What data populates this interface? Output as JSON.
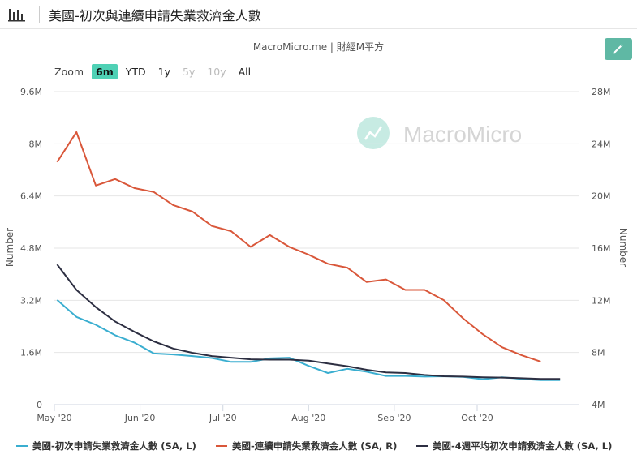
{
  "header": {
    "title": "美國-初次與連續申請失業救濟金人數"
  },
  "source": "MacroMicro.me | 財經M平方",
  "watermark": "MacroMicro",
  "zoom": {
    "label": "Zoom",
    "buttons": [
      {
        "label": "6m",
        "state": "active"
      },
      {
        "label": "YTD",
        "state": "normal"
      },
      {
        "label": "1y",
        "state": "normal"
      },
      {
        "label": "5y",
        "state": "disabled"
      },
      {
        "label": "10y",
        "state": "disabled"
      },
      {
        "label": "All",
        "state": "normal"
      }
    ]
  },
  "chart_data": {
    "type": "line",
    "x_axis": {
      "ticks": [
        {
          "date": "2020-05-01",
          "label": "May '20"
        },
        {
          "date": "2020-06-01",
          "label": "Jun '20"
        },
        {
          "date": "2020-07-01",
          "label": "Jul '20"
        },
        {
          "date": "2020-08-01",
          "label": "Aug '20"
        },
        {
          "date": "2020-09-01",
          "label": "Sep '20"
        },
        {
          "date": "2020-10-01",
          "label": "Oct '20"
        }
      ],
      "range": [
        "2020-05-01",
        "2020-11-07"
      ]
    },
    "y_left": {
      "label": "Number",
      "range": [
        0,
        9600000
      ],
      "ticks": [
        {
          "value": 0,
          "label": "0"
        },
        {
          "value": 1600000,
          "label": "1.6M"
        },
        {
          "value": 3200000,
          "label": "3.2M"
        },
        {
          "value": 4800000,
          "label": "4.8M"
        },
        {
          "value": 6400000,
          "label": "6.4M"
        },
        {
          "value": 8000000,
          "label": "8M"
        },
        {
          "value": 9600000,
          "label": "9.6M"
        }
      ]
    },
    "y_right": {
      "label": "Number",
      "range": [
        4000000,
        28000000
      ],
      "ticks": [
        {
          "value": 4000000,
          "label": "4M"
        },
        {
          "value": 8000000,
          "label": "8M"
        },
        {
          "value": 12000000,
          "label": "12M"
        },
        {
          "value": 16000000,
          "label": "16M"
        },
        {
          "value": 20000000,
          "label": "20M"
        },
        {
          "value": 24000000,
          "label": "24M"
        },
        {
          "value": 28000000,
          "label": "28M"
        }
      ]
    },
    "grid": true,
    "legend_position": "bottom",
    "series": [
      {
        "name": "美國-初次申請失業救濟金人數 (SA, L)",
        "axis": "left",
        "color": "#3aaed0",
        "points": [
          [
            "2020-05-02",
            3210000
          ],
          [
            "2020-05-09",
            2690000
          ],
          [
            "2020-05-16",
            2450000
          ],
          [
            "2020-05-23",
            2130000
          ],
          [
            "2020-05-30",
            1900000
          ],
          [
            "2020-06-06",
            1570000
          ],
          [
            "2020-06-13",
            1540000
          ],
          [
            "2020-06-20",
            1490000
          ],
          [
            "2020-06-27",
            1430000
          ],
          [
            "2020-07-04",
            1310000
          ],
          [
            "2020-07-11",
            1310000
          ],
          [
            "2020-07-18",
            1420000
          ],
          [
            "2020-07-25",
            1440000
          ],
          [
            "2020-08-01",
            1190000
          ],
          [
            "2020-08-08",
            970000
          ],
          [
            "2020-08-15",
            1100000
          ],
          [
            "2020-08-22",
            1010000
          ],
          [
            "2020-08-29",
            880000
          ],
          [
            "2020-09-05",
            880000
          ],
          [
            "2020-09-12",
            860000
          ],
          [
            "2020-09-19",
            870000
          ],
          [
            "2020-09-26",
            850000
          ],
          [
            "2020-10-03",
            780000
          ],
          [
            "2020-10-10",
            840000
          ],
          [
            "2020-10-17",
            790000
          ],
          [
            "2020-10-24",
            750000
          ],
          [
            "2020-10-31",
            750000
          ]
        ]
      },
      {
        "name": "美國-連續申請失業救濟金人數 (SA, R)",
        "axis": "right",
        "color": "#d9573a",
        "points": [
          [
            "2020-05-02",
            22600000
          ],
          [
            "2020-05-09",
            24900000
          ],
          [
            "2020-05-16",
            20800000
          ],
          [
            "2020-05-23",
            21300000
          ],
          [
            "2020-05-30",
            20600000
          ],
          [
            "2020-06-06",
            20300000
          ],
          [
            "2020-06-13",
            19300000
          ],
          [
            "2020-06-20",
            18800000
          ],
          [
            "2020-06-27",
            17700000
          ],
          [
            "2020-07-04",
            17300000
          ],
          [
            "2020-07-11",
            16100000
          ],
          [
            "2020-07-18",
            17000000
          ],
          [
            "2020-07-25",
            16100000
          ],
          [
            "2020-08-01",
            15500000
          ],
          [
            "2020-08-08",
            14800000
          ],
          [
            "2020-08-15",
            14500000
          ],
          [
            "2020-08-22",
            13400000
          ],
          [
            "2020-08-29",
            13600000
          ],
          [
            "2020-09-05",
            12800000
          ],
          [
            "2020-09-12",
            12800000
          ],
          [
            "2020-09-19",
            12000000
          ],
          [
            "2020-09-26",
            10600000
          ],
          [
            "2020-10-03",
            9400000
          ],
          [
            "2020-10-10",
            8400000
          ],
          [
            "2020-10-17",
            7800000
          ],
          [
            "2020-10-24",
            7300000
          ]
        ]
      },
      {
        "name": "美國-4週平均初次申請救濟金人數 (SA, L)",
        "axis": "left",
        "color": "#2d2f42",
        "points": [
          [
            "2020-05-02",
            4300000
          ],
          [
            "2020-05-09",
            3520000
          ],
          [
            "2020-05-16",
            2990000
          ],
          [
            "2020-05-23",
            2550000
          ],
          [
            "2020-05-30",
            2230000
          ],
          [
            "2020-06-06",
            1940000
          ],
          [
            "2020-06-13",
            1720000
          ],
          [
            "2020-06-20",
            1590000
          ],
          [
            "2020-06-27",
            1490000
          ],
          [
            "2020-07-04",
            1440000
          ],
          [
            "2020-07-11",
            1390000
          ],
          [
            "2020-07-18",
            1380000
          ],
          [
            "2020-07-25",
            1380000
          ],
          [
            "2020-08-01",
            1350000
          ],
          [
            "2020-08-08",
            1260000
          ],
          [
            "2020-08-15",
            1180000
          ],
          [
            "2020-08-22",
            1070000
          ],
          [
            "2020-08-29",
            990000
          ],
          [
            "2020-09-05",
            970000
          ],
          [
            "2020-09-12",
            910000
          ],
          [
            "2020-09-19",
            870000
          ],
          [
            "2020-09-26",
            860000
          ],
          [
            "2020-10-03",
            840000
          ],
          [
            "2020-10-10",
            830000
          ],
          [
            "2020-10-17",
            810000
          ],
          [
            "2020-10-24",
            790000
          ],
          [
            "2020-10-31",
            790000
          ]
        ]
      }
    ]
  }
}
